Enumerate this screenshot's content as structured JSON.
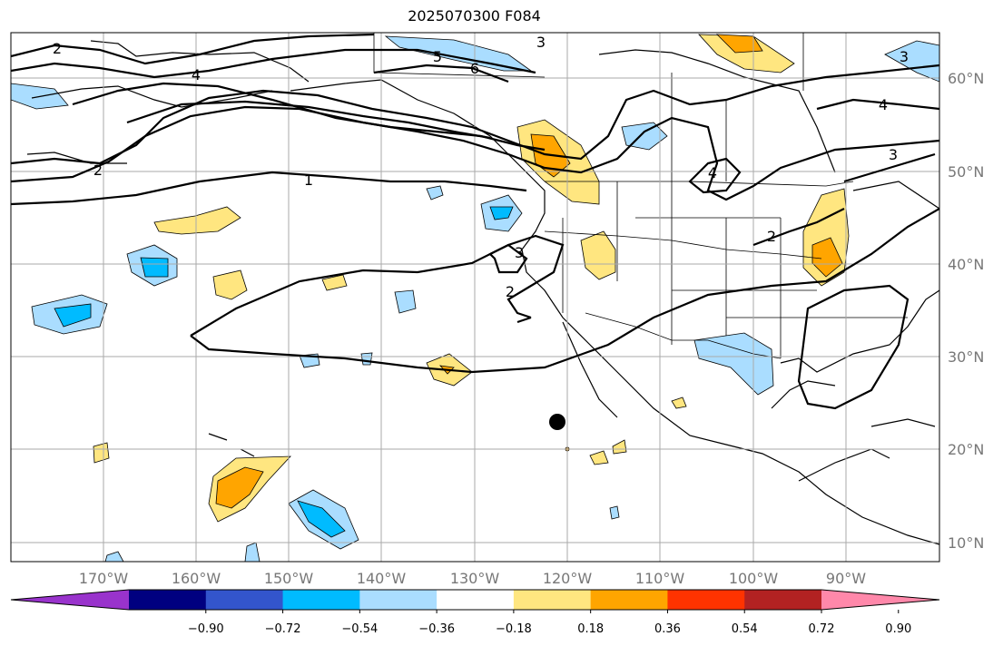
{
  "title": "2025070300 F084",
  "lon_ticks": [
    "170°W",
    "160°W",
    "150°W",
    "140°W",
    "130°W",
    "120°W",
    "110°W",
    "100°W",
    "90°W"
  ],
  "lat_ticks": [
    "60°N",
    "50°N",
    "40°N",
    "30°N",
    "20°N",
    "10°N"
  ],
  "contour_labels": [
    "2",
    "4",
    "2",
    "1",
    "3",
    "5",
    "6",
    "3",
    "4",
    "3",
    "4",
    "2",
    "3",
    "2"
  ],
  "colorbar": {
    "tick_labels": [
      "−0.90",
      "−0.72",
      "−0.54",
      "−0.36",
      "−0.18",
      "0.18",
      "0.36",
      "0.54",
      "0.72",
      "0.90"
    ],
    "colors": [
      "#9933cc",
      "#000080",
      "#3355cc",
      "#00bbff",
      "#aaddff",
      "#ffffff",
      "#ffe680",
      "#ffa500",
      "#ff3300",
      "#b22222",
      "#ff88aa"
    ]
  },
  "marker": "black-dot"
}
